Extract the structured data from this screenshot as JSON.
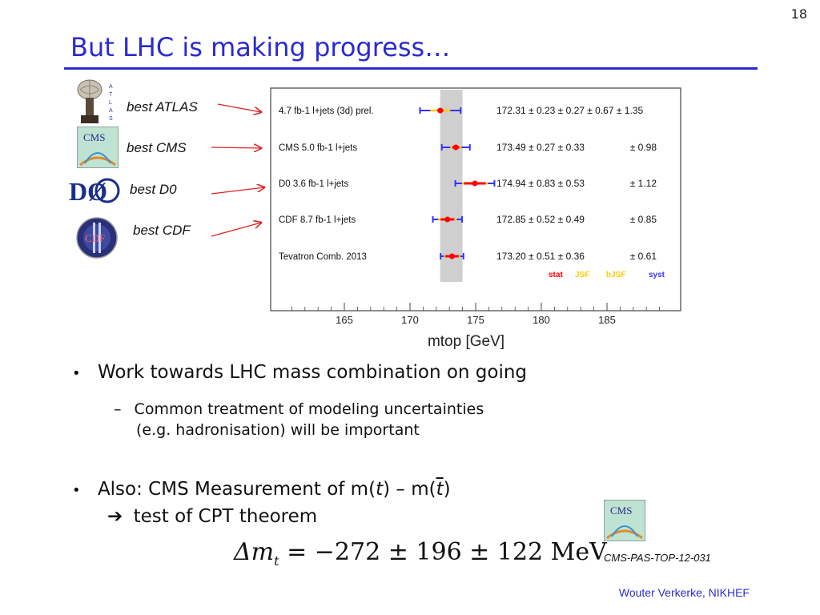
{
  "slide": {
    "page_number": "18",
    "title": "But LHC is making progress…",
    "labels": {
      "atlas": "best ATLAS",
      "cms": "best CMS",
      "d0": "best D0",
      "cdf": "best CDF"
    },
    "logos": {
      "atlas_letters": "ATLAS",
      "cms_text": "CMS",
      "d0_text": "DØ",
      "cdf_text": "CDF"
    },
    "bullet1": "Work towards LHC mass combination on going",
    "sub1_line1": "Common treatment of modeling uncertainties",
    "sub1_line2": "(e.g. hadronisation) will be important",
    "bullet2_prefix": "Also: CMS Measurement of m(",
    "bullet2_t": "t",
    "bullet2_mid": ") – m(",
    "bullet2_tbar": "t",
    "bullet2_suffix": ")",
    "bullet2_line2": "test of CPT theorem",
    "formula_lhs": "Δm",
    "formula_sub": "t",
    "formula_rhs": "= −272 ± 196 ± 122 MeV",
    "reference": "CMS-PAS-TOP-12-031",
    "author": "Wouter Verkerke, NIKHEF"
  },
  "chart_data": {
    "type": "scatter",
    "xlabel": "m_top [GeV]",
    "xlim": [
      160,
      190
    ],
    "xticks": [
      165,
      170,
      175,
      180,
      185
    ],
    "band": [
      172.3,
      174.0
    ],
    "measurements": [
      {
        "label": "4.7 fb-1 l+jets (3d) prel.",
        "central": 172.31,
        "stat": 0.23,
        "jsf": 0.27,
        "bjsf": 0.67,
        "syst": 1.35,
        "text": "172.31 ± 0.23 ± 0.27 ± 0.67 ± 1.35"
      },
      {
        "label": "CMS 5.0 fb-1 l+jets",
        "central": 173.49,
        "stat": 0.27,
        "jsf": 0.33,
        "bjsf": null,
        "syst": 0.98,
        "text": "173.49 ± 0.27 ± 0.33",
        "syst_text": "± 0.98"
      },
      {
        "label": "D0 3.6 fb-1 l+jets",
        "central": 174.94,
        "stat": 0.83,
        "jsf": 0.53,
        "bjsf": null,
        "syst": 1.12,
        "text": "174.94 ± 0.83 ± 0.53",
        "syst_text": "± 1.12"
      },
      {
        "label": "CDF 8.7 fb-1 l+jets",
        "central": 172.85,
        "stat": 0.52,
        "jsf": 0.49,
        "bjsf": null,
        "syst": 0.85,
        "text": "172.85 ± 0.52 ± 0.49",
        "syst_text": "± 0.85"
      },
      {
        "label": "Tevatron Comb. 2013",
        "central": 173.2,
        "stat": 0.51,
        "jsf": 0.36,
        "bjsf": null,
        "syst": 0.61,
        "text": "173.20 ± 0.51 ± 0.36",
        "syst_text": "± 0.61"
      }
    ],
    "legend": [
      {
        "name": "stat",
        "color": "#ff0000"
      },
      {
        "name": "JSF",
        "color": "#ffcc00"
      },
      {
        "name": "bJSF",
        "color": "#ffcc00"
      },
      {
        "name": "syst",
        "color": "#3333ff"
      }
    ]
  }
}
